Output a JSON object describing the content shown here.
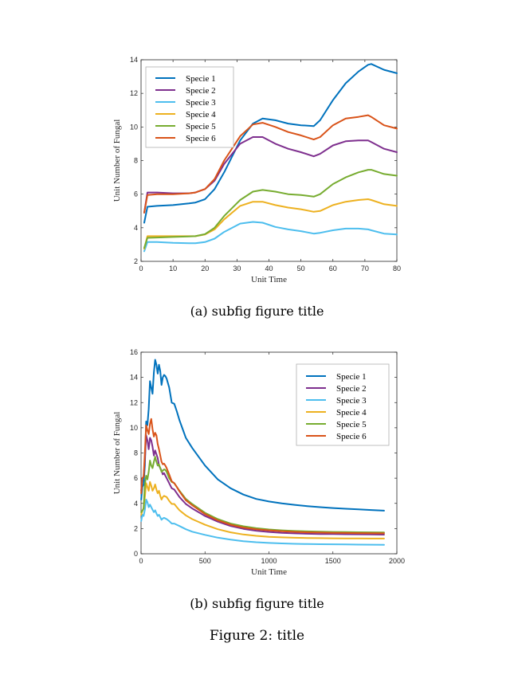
{
  "figure": {
    "caption": "Figure 2: title",
    "subfigures": [
      {
        "caption": "(a) subfig figure title"
      },
      {
        "caption": "(b) subfig figure title"
      }
    ]
  },
  "chart_data": [
    {
      "type": "line",
      "title": "",
      "xlabel": "Unit Time",
      "ylabel": "Unit Number of Fungal",
      "xlim": [
        0,
        80
      ],
      "ylim": [
        2,
        14
      ],
      "xticks": [
        0,
        10,
        20,
        30,
        40,
        50,
        60,
        70,
        80
      ],
      "yticks": [
        2,
        4,
        6,
        8,
        10,
        12,
        14
      ],
      "grid": false,
      "legend_position": "top-left",
      "x": [
        1,
        2,
        5,
        10,
        15,
        17,
        20,
        23,
        26,
        31,
        35,
        38,
        42,
        46,
        50,
        54,
        56,
        60,
        64,
        68,
        71,
        72,
        76,
        80
      ],
      "series": [
        {
          "name": "Specie 1",
          "color": "#0072BD",
          "values": [
            4.3,
            5.25,
            5.3,
            5.35,
            5.45,
            5.5,
            5.7,
            6.3,
            7.3,
            9.2,
            10.2,
            10.5,
            10.4,
            10.2,
            10.1,
            10.05,
            10.4,
            11.6,
            12.6,
            13.3,
            13.7,
            13.75,
            13.4,
            13.2
          ]
        },
        {
          "name": "Specie 2",
          "color": "#7E2F8E",
          "values": [
            4.9,
            6.1,
            6.1,
            6.05,
            6.05,
            6.1,
            6.3,
            6.8,
            7.8,
            9.0,
            9.4,
            9.4,
            9.0,
            8.7,
            8.5,
            8.25,
            8.4,
            8.9,
            9.15,
            9.2,
            9.2,
            9.1,
            8.7,
            8.5
          ]
        },
        {
          "name": "Specie 3",
          "color": "#4DBEEE",
          "values": [
            2.6,
            3.15,
            3.15,
            3.1,
            3.08,
            3.08,
            3.15,
            3.35,
            3.75,
            4.25,
            4.35,
            4.3,
            4.05,
            3.9,
            3.8,
            3.65,
            3.7,
            3.85,
            3.95,
            3.95,
            3.9,
            3.85,
            3.65,
            3.6
          ]
        },
        {
          "name": "Specie 4",
          "color": "#EDB120",
          "values": [
            2.75,
            3.5,
            3.5,
            3.5,
            3.5,
            3.5,
            3.6,
            3.9,
            4.5,
            5.3,
            5.55,
            5.55,
            5.35,
            5.2,
            5.1,
            4.95,
            5.0,
            5.35,
            5.55,
            5.65,
            5.7,
            5.65,
            5.4,
            5.3
          ]
        },
        {
          "name": "Specie 5",
          "color": "#77AC30",
          "values": [
            2.8,
            3.4,
            3.42,
            3.45,
            3.48,
            3.5,
            3.62,
            4.0,
            4.7,
            5.65,
            6.15,
            6.25,
            6.15,
            6.0,
            5.95,
            5.85,
            6.0,
            6.6,
            7.0,
            7.3,
            7.45,
            7.45,
            7.2,
            7.1
          ]
        },
        {
          "name": "Specie 6",
          "color": "#D95319",
          "values": [
            4.9,
            5.95,
            6.0,
            6.0,
            6.05,
            6.1,
            6.3,
            6.9,
            8.0,
            9.45,
            10.15,
            10.25,
            10.0,
            9.7,
            9.5,
            9.25,
            9.4,
            10.1,
            10.5,
            10.6,
            10.7,
            10.6,
            10.1,
            9.9
          ]
        }
      ]
    },
    {
      "type": "line",
      "title": "",
      "xlabel": "Unit Time",
      "ylabel": "Unit Number of Fungal",
      "xlim": [
        0,
        2000
      ],
      "ylim": [
        0,
        16
      ],
      "xticks": [
        0,
        500,
        1000,
        1500,
        2000
      ],
      "yticks": [
        0,
        2,
        4,
        6,
        8,
        10,
        12,
        14,
        16
      ],
      "grid": false,
      "legend_position": "top-right",
      "x": [
        1,
        10,
        20,
        30,
        40,
        50,
        60,
        70,
        80,
        90,
        100,
        110,
        120,
        130,
        140,
        150,
        160,
        170,
        180,
        190,
        200,
        220,
        240,
        260,
        280,
        300,
        350,
        400,
        500,
        600,
        700,
        800,
        900,
        1000,
        1100,
        1200,
        1300,
        1400,
        1500,
        1600,
        1700,
        1800,
        1900
      ],
      "series": [
        {
          "name": "Specie 1",
          "color": "#0072BD",
          "values": [
            4.3,
            5.3,
            5.5,
            7.0,
            10.5,
            10.2,
            11.5,
            13.7,
            13.2,
            12.7,
            14.4,
            15.4,
            15.0,
            14.3,
            15.0,
            14.5,
            13.4,
            14.0,
            14.2,
            14.1,
            13.9,
            13.2,
            12.0,
            11.9,
            11.3,
            10.6,
            9.2,
            8.4,
            7.0,
            5.9,
            5.2,
            4.7,
            4.35,
            4.15,
            4.0,
            3.88,
            3.78,
            3.7,
            3.63,
            3.57,
            3.52,
            3.47,
            3.42
          ]
        },
        {
          "name": "Specie 2",
          "color": "#7E2F8E",
          "values": [
            5.0,
            6.0,
            6.1,
            7.5,
            9.4,
            9.0,
            8.3,
            9.2,
            9.0,
            8.5,
            7.8,
            8.2,
            7.9,
            7.6,
            7.0,
            6.8,
            6.6,
            6.3,
            6.4,
            6.2,
            6.0,
            5.6,
            5.2,
            5.1,
            4.8,
            4.5,
            3.95,
            3.6,
            3.0,
            2.55,
            2.2,
            1.98,
            1.83,
            1.73,
            1.66,
            1.62,
            1.59,
            1.57,
            1.56,
            1.55,
            1.54,
            1.53,
            1.52
          ]
        },
        {
          "name": "Specie 3",
          "color": "#4DBEEE",
          "values": [
            2.6,
            3.1,
            3.0,
            3.5,
            4.3,
            4.1,
            3.7,
            3.9,
            3.7,
            3.5,
            3.3,
            3.45,
            3.2,
            3.0,
            3.1,
            2.9,
            2.7,
            2.8,
            2.85,
            2.8,
            2.75,
            2.6,
            2.4,
            2.4,
            2.3,
            2.2,
            1.95,
            1.75,
            1.5,
            1.28,
            1.12,
            1.0,
            0.92,
            0.86,
            0.82,
            0.79,
            0.77,
            0.76,
            0.75,
            0.74,
            0.73,
            0.72,
            0.71
          ]
        },
        {
          "name": "Specie 4",
          "color": "#EDB120",
          "values": [
            3.1,
            3.4,
            3.6,
            4.5,
            5.6,
            5.3,
            5.0,
            5.7,
            5.4,
            5.0,
            5.2,
            5.5,
            5.1,
            4.8,
            5.0,
            4.6,
            4.3,
            4.5,
            4.6,
            4.55,
            4.5,
            4.2,
            3.95,
            3.95,
            3.7,
            3.45,
            3.05,
            2.75,
            2.3,
            1.95,
            1.7,
            1.53,
            1.42,
            1.35,
            1.3,
            1.27,
            1.25,
            1.24,
            1.23,
            1.22,
            1.22,
            1.21,
            1.21
          ]
        },
        {
          "name": "Specie 5",
          "color": "#77AC30",
          "values": [
            3.3,
            3.4,
            3.6,
            5.5,
            6.2,
            5.9,
            6.5,
            7.4,
            7.0,
            6.8,
            7.3,
            7.7,
            7.3,
            7.0,
            7.1,
            6.8,
            6.5,
            6.6,
            6.7,
            6.65,
            6.5,
            6.0,
            5.7,
            5.6,
            5.3,
            5.0,
            4.35,
            3.95,
            3.25,
            2.75,
            2.4,
            2.18,
            2.03,
            1.93,
            1.86,
            1.81,
            1.78,
            1.75,
            1.73,
            1.72,
            1.71,
            1.7,
            1.69
          ]
        },
        {
          "name": "Specie 6",
          "color": "#D95319",
          "values": [
            4.8,
            6.0,
            6.1,
            8.0,
            10.2,
            9.8,
            9.5,
            10.3,
            10.7,
            9.9,
            9.3,
            9.6,
            9.4,
            8.7,
            8.3,
            7.8,
            7.3,
            7.1,
            7.15,
            7.0,
            6.8,
            6.3,
            5.75,
            5.6,
            5.3,
            4.95,
            4.25,
            3.85,
            3.15,
            2.65,
            2.3,
            2.08,
            1.95,
            1.86,
            1.79,
            1.74,
            1.7,
            1.68,
            1.66,
            1.65,
            1.64,
            1.63,
            1.62
          ]
        }
      ]
    }
  ]
}
